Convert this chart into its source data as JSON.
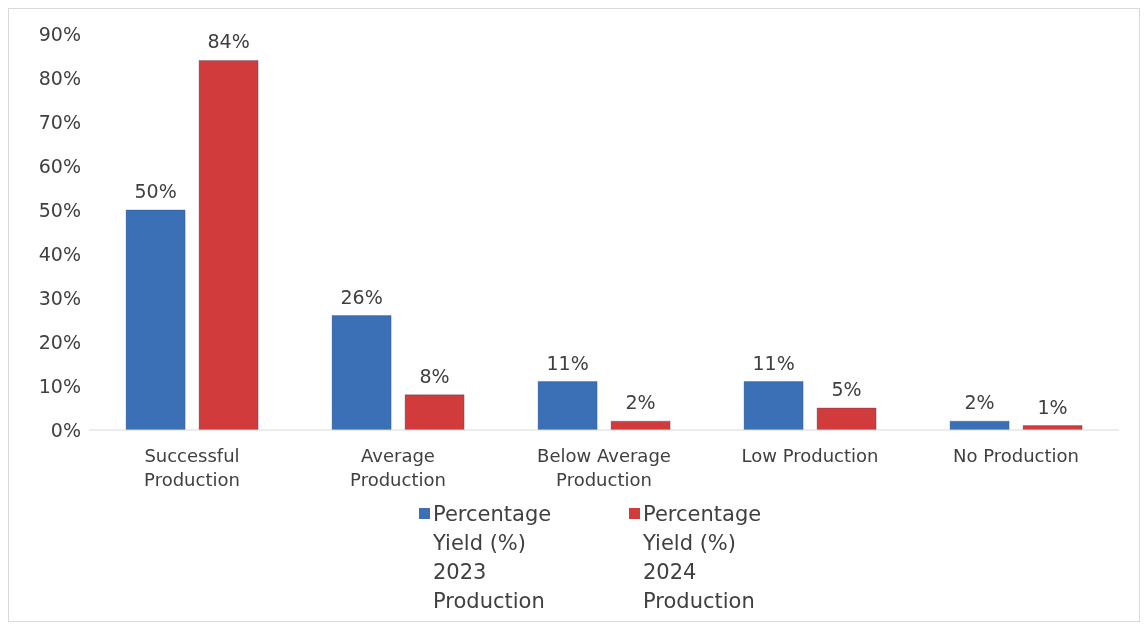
{
  "chart_data": {
    "type": "bar",
    "categories": [
      "Successful Production",
      "Average Production",
      "Below Average Production",
      "Low Production",
      "No Production"
    ],
    "series": [
      {
        "name": "Percentage Yield (%) 2023 Production",
        "color": "#3b6fb6",
        "values": [
          50,
          26,
          11,
          11,
          2
        ],
        "value_labels": [
          "50%",
          "26%",
          "11%",
          "11%",
          "2%"
        ]
      },
      {
        "name": "Percentage Yield (%) 2024 Production",
        "color": "#d23b3b",
        "values": [
          84,
          8,
          2,
          5,
          1
        ],
        "value_labels": [
          "84%",
          "8%",
          "2%",
          "5%",
          "1%"
        ]
      }
    ],
    "ylim": [
      0,
      90
    ],
    "yticks": [
      {
        "value": 0,
        "label": "0%"
      },
      {
        "value": 10,
        "label": "10%"
      },
      {
        "value": 20,
        "label": "20%"
      },
      {
        "value": 30,
        "label": "30%"
      },
      {
        "value": 40,
        "label": "40%"
      },
      {
        "value": 50,
        "label": "50%"
      },
      {
        "value": 60,
        "label": "60%"
      },
      {
        "value": 70,
        "label": "70%"
      },
      {
        "value": 80,
        "label": "80%"
      },
      {
        "value": 90,
        "label": "90%"
      }
    ],
    "grid": false,
    "legend": "bottom"
  }
}
